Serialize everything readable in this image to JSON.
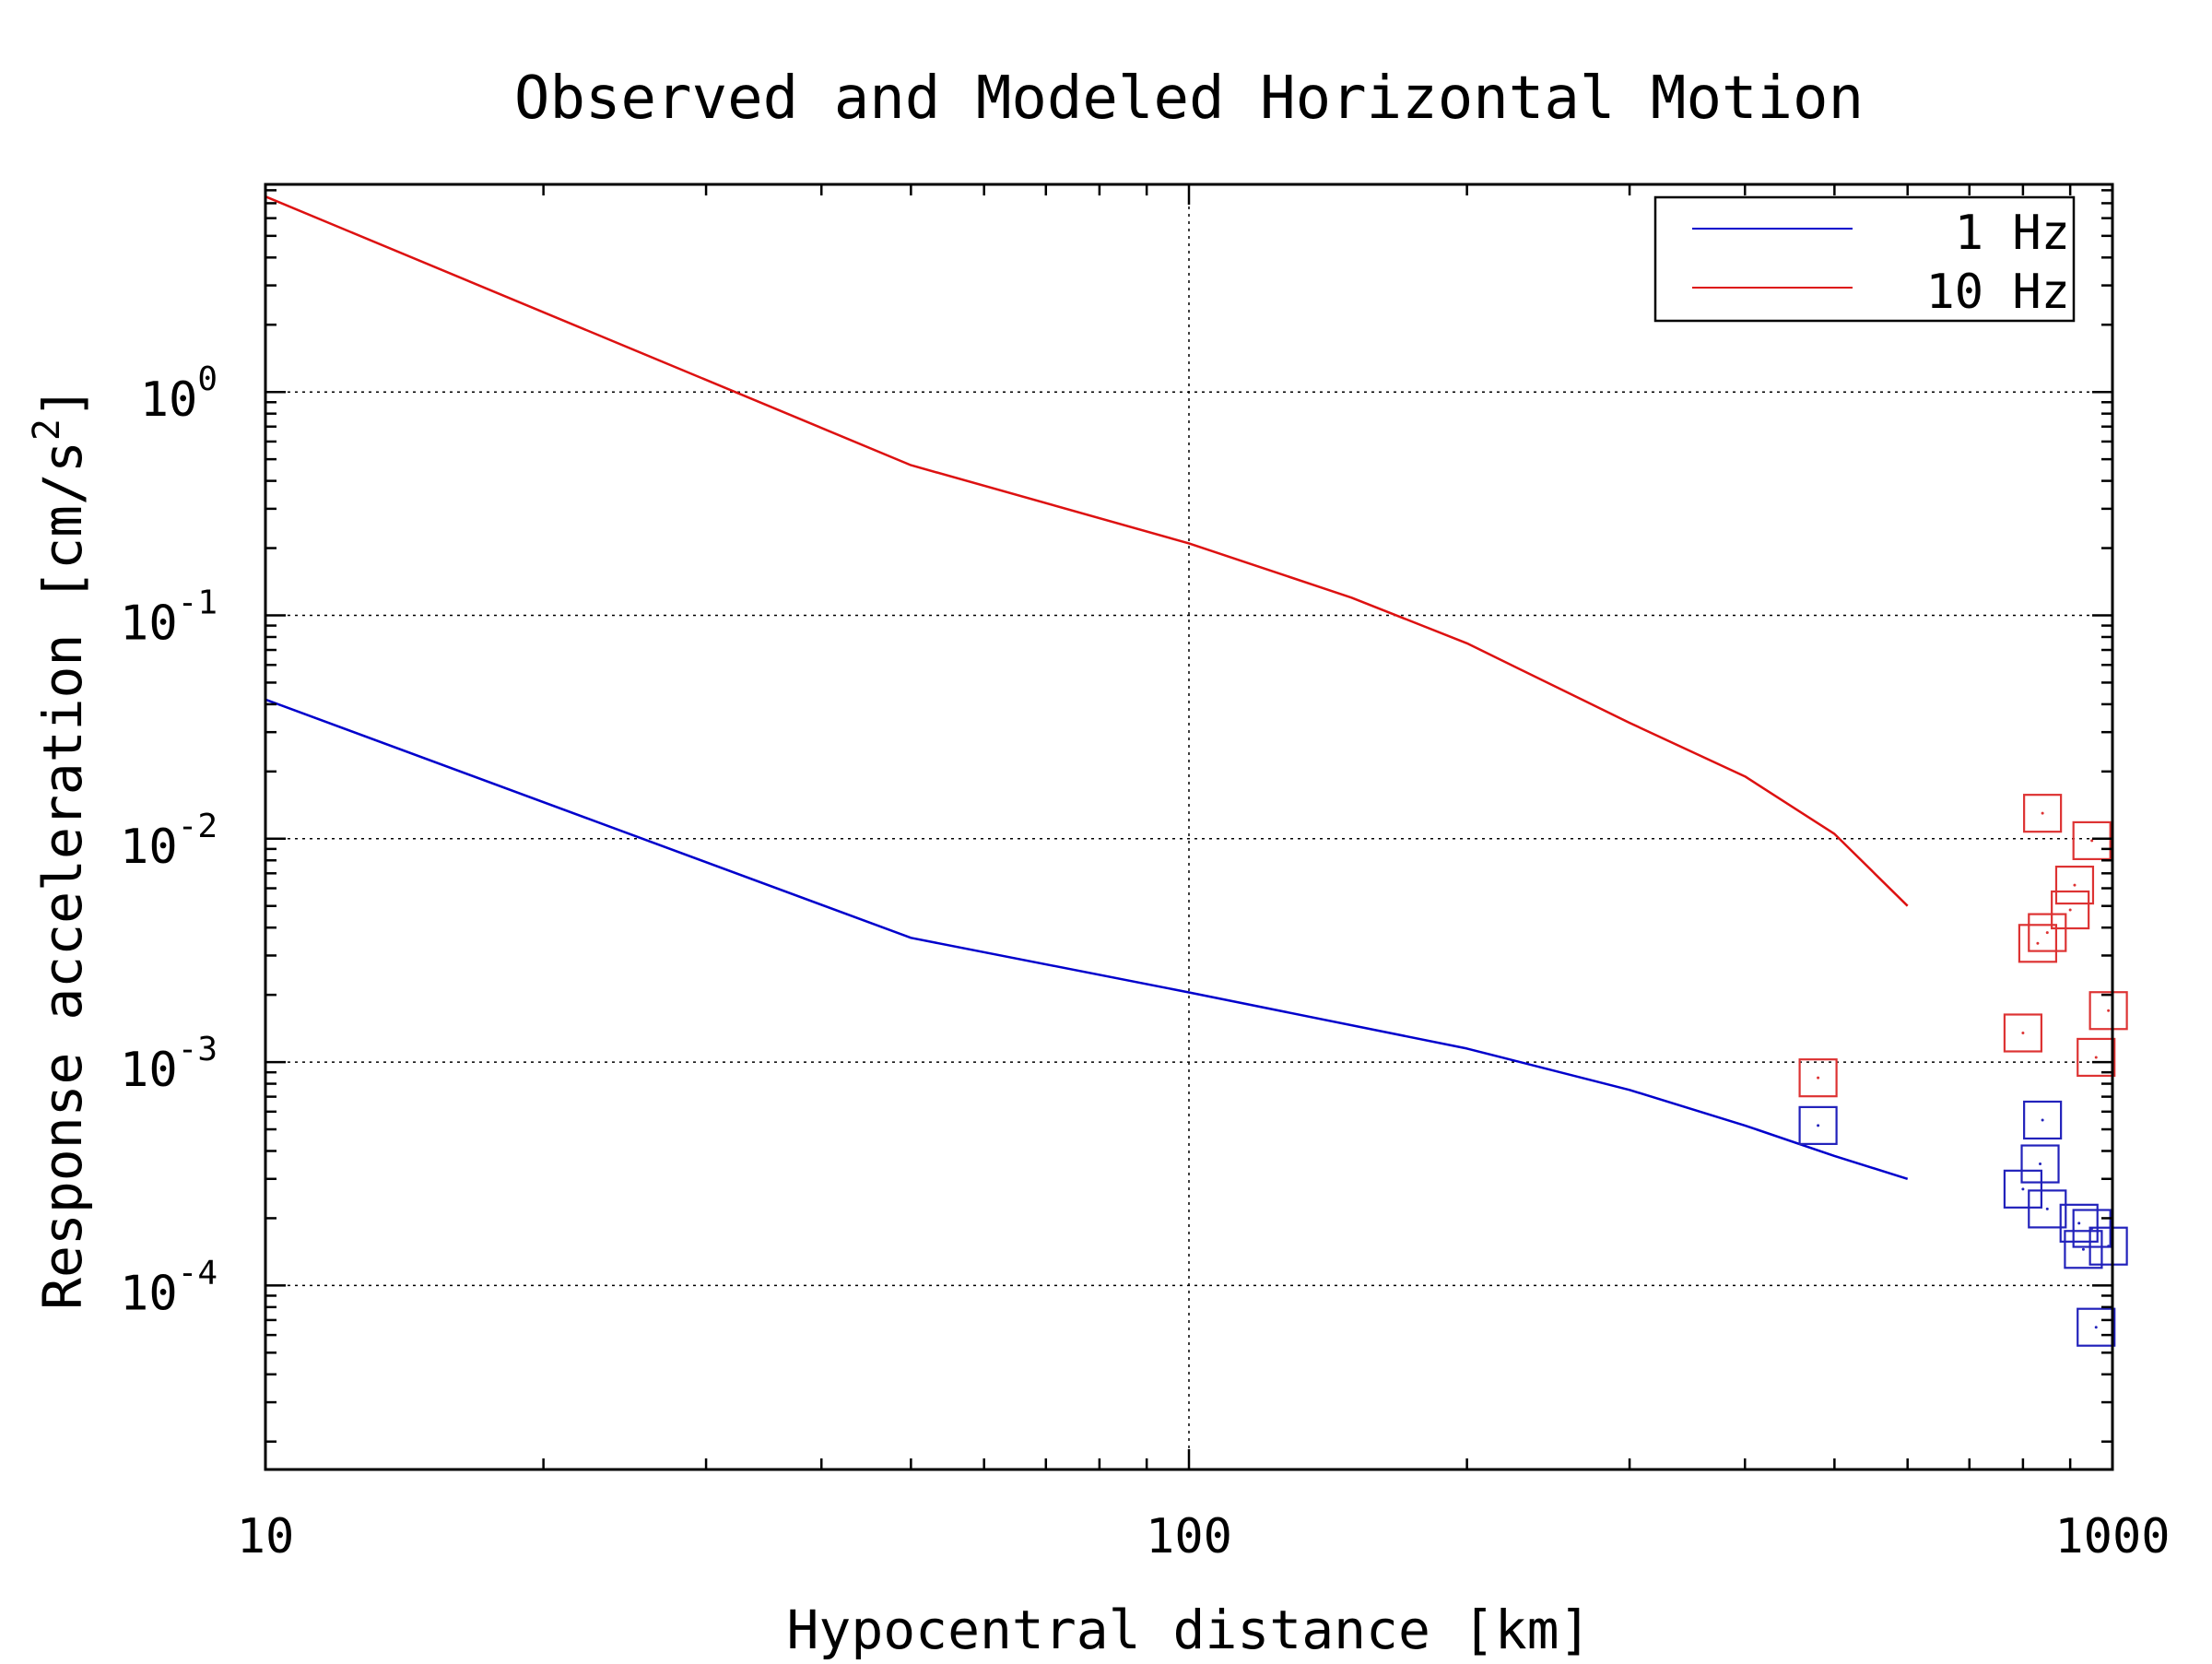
{
  "chart_data": {
    "type": "line",
    "title": "Observed and Modeled Horizontal Motion",
    "xlabel": "Hypocentral distance [km]",
    "ylabel_text": "Response acceleration [cm/s",
    "ylabel_exponent": "2",
    "ylabel_close": "]",
    "x_scale": "log",
    "y_scale": "log",
    "xlim": [
      10,
      1000
    ],
    "ylim": [
      1.5e-05,
      8.5
    ],
    "grid": true,
    "legend_position": "top-right",
    "x_ticks": [
      {
        "value": 10,
        "label": "10"
      },
      {
        "value": 100,
        "label": "100"
      },
      {
        "value": 1000,
        "label": "1000"
      }
    ],
    "y_ticks": [
      {
        "value": 1,
        "base": "10",
        "exp": "0"
      },
      {
        "value": 0.1,
        "base": "10",
        "exp": "-1"
      },
      {
        "value": 0.01,
        "base": "10",
        "exp": "-2"
      },
      {
        "value": 0.001,
        "base": "10",
        "exp": "-3"
      },
      {
        "value": 0.0001,
        "base": "10",
        "exp": "-4"
      }
    ],
    "series": [
      {
        "name": "1 Hz",
        "color": "#0000cc",
        "points": [
          [
            10,
            0.042
          ],
          [
            50,
            0.0036
          ],
          [
            100,
            0.00205
          ],
          [
            200,
            0.00115
          ],
          [
            300,
            0.00075
          ],
          [
            400,
            0.00052
          ],
          [
            500,
            0.00038
          ],
          [
            600,
            0.0003
          ]
        ]
      },
      {
        "name": "10 Hz",
        "color": "#dd1111",
        "points": [
          [
            10,
            7.5
          ],
          [
            50,
            0.47
          ],
          [
            100,
            0.21
          ],
          [
            150,
            0.12
          ],
          [
            200,
            0.075
          ],
          [
            300,
            0.033
          ],
          [
            400,
            0.019
          ],
          [
            500,
            0.0105
          ],
          [
            600,
            0.005
          ]
        ]
      }
    ],
    "observed": [
      {
        "series": "1 Hz",
        "color": "#2222bb",
        "points": [
          [
            480,
            0.00052
          ],
          [
            800,
            0.00027
          ],
          [
            840,
            0.00055
          ],
          [
            835,
            0.00035
          ],
          [
            850,
            0.00022
          ],
          [
            920,
            0.00019
          ],
          [
            930,
            0.000145
          ],
          [
            950,
            0.00018
          ],
          [
            990,
            0.00015
          ],
          [
            960,
            6.5e-05
          ]
        ]
      },
      {
        "series": "10 Hz",
        "color": "#dd3333",
        "points": [
          [
            480,
            0.00085
          ],
          [
            840,
            0.013
          ],
          [
            950,
            0.0098
          ],
          [
            910,
            0.0062
          ],
          [
            900,
            0.0048
          ],
          [
            850,
            0.0038
          ],
          [
            830,
            0.0034
          ],
          [
            800,
            0.00135
          ],
          [
            990,
            0.0017
          ],
          [
            960,
            0.00105
          ]
        ]
      }
    ]
  }
}
